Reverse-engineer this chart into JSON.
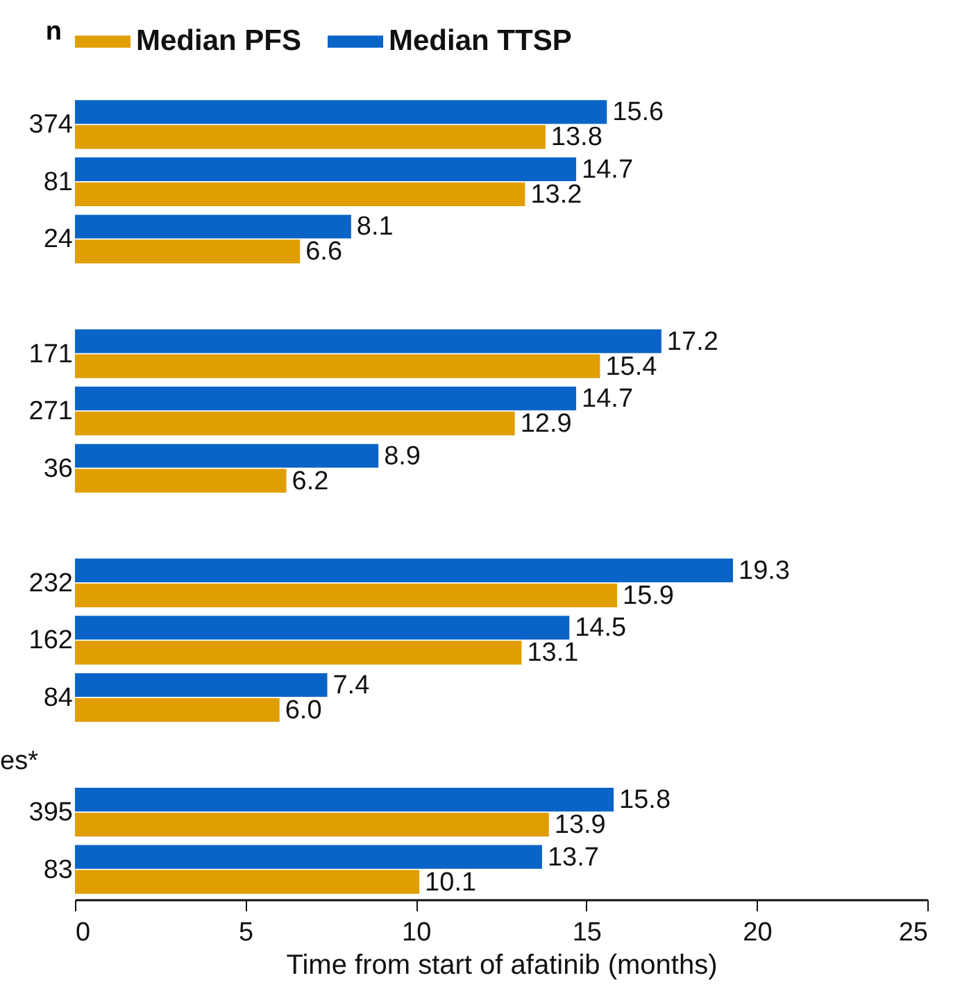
{
  "chart_data": {
    "type": "bar",
    "orientation": "horizontal",
    "xlabel": "Time from start of afatinib (months)",
    "ylabel": "n",
    "categories": [
      "374",
      "81",
      "24",
      null,
      "171",
      "271",
      "36",
      null,
      "232",
      "162",
      "84",
      null,
      "395",
      "83"
    ],
    "series": [
      {
        "name": "Median PFS",
        "color": "#e09e00",
        "values": [
          13.8,
          13.2,
          6.6,
          null,
          15.4,
          12.9,
          6.2,
          null,
          15.9,
          13.1,
          6.0,
          null,
          13.9,
          10.1
        ],
        "value_labels": [
          "13.8",
          "13.2",
          "6.6",
          null,
          "15.4",
          "12.9",
          "6.2",
          null,
          "15.9",
          "13.1",
          "6.0",
          null,
          "13.9",
          "10.1"
        ]
      },
      {
        "name": "Median TTSP",
        "color": "#0a64c8",
        "values": [
          15.6,
          14.7,
          8.1,
          null,
          17.2,
          14.7,
          8.9,
          null,
          19.3,
          14.5,
          7.4,
          null,
          15.8,
          13.7
        ],
        "value_labels": [
          "15.6",
          "14.7",
          "8.1",
          null,
          "17.2",
          "14.7",
          "8.9",
          null,
          "19.3",
          "14.5",
          "7.4",
          null,
          "15.8",
          "13.7"
        ]
      }
    ],
    "xlim": [
      0,
      25
    ],
    "xticks": [
      0,
      5,
      10,
      15,
      20,
      25
    ],
    "legend": "top",
    "grid": false,
    "annotations": [
      "es*"
    ]
  }
}
